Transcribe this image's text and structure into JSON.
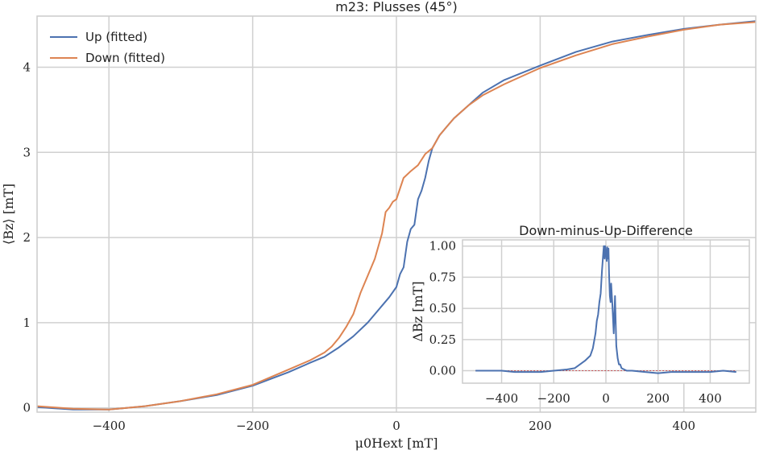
{
  "colors": {
    "up": "#4c72b0",
    "down": "#dd8452",
    "zero_line": "#c44e52"
  },
  "chart_data": [
    {
      "type": "line",
      "title": "m23: Plusses (45°)",
      "xlabel": "μ0Hext [mT]",
      "ylabel": "⟨Bz⟩ [mT]",
      "xlim": [
        -500,
        500
      ],
      "ylim": [
        -0.05,
        4.6
      ],
      "xticks": [
        -400,
        -200,
        0,
        200,
        400
      ],
      "xtick_labels": [
        "−400",
        "−200",
        "0",
        "200",
        "400"
      ],
      "yticks": [
        0,
        1,
        2,
        3,
        4
      ],
      "ytick_labels": [
        "0",
        "1",
        "2",
        "3",
        "4"
      ],
      "grid": true,
      "legend": "top-left",
      "series": [
        {
          "name": "Up (fitted)",
          "color": "#4c72b0",
          "x": [
            -500,
            -450,
            -400,
            -350,
            -300,
            -250,
            -200,
            -150,
            -120,
            -100,
            -80,
            -60,
            -40,
            -20,
            -10,
            0,
            5,
            10,
            15,
            20,
            25,
            30,
            35,
            40,
            45,
            50,
            60,
            70,
            80,
            100,
            120,
            150,
            200,
            250,
            300,
            350,
            400,
            450,
            500
          ],
          "y": [
            0.01,
            -0.02,
            -0.02,
            0.02,
            0.08,
            0.15,
            0.26,
            0.42,
            0.53,
            0.6,
            0.71,
            0.84,
            1.0,
            1.2,
            1.3,
            1.42,
            1.57,
            1.65,
            1.95,
            2.1,
            2.15,
            2.45,
            2.55,
            2.7,
            2.9,
            3.05,
            3.2,
            3.3,
            3.4,
            3.55,
            3.7,
            3.85,
            4.02,
            4.18,
            4.3,
            4.38,
            4.45,
            4.5,
            4.54
          ]
        },
        {
          "name": "Down (fitted)",
          "color": "#dd8452",
          "x": [
            -500,
            -450,
            -400,
            -350,
            -300,
            -250,
            -200,
            -150,
            -120,
            -100,
            -90,
            -80,
            -70,
            -60,
            -50,
            -40,
            -30,
            -20,
            -15,
            -10,
            -5,
            0,
            10,
            20,
            30,
            40,
            50,
            60,
            70,
            80,
            100,
            120,
            150,
            200,
            250,
            300,
            350,
            400,
            450,
            500
          ],
          "y": [
            0.02,
            -0.01,
            -0.02,
            0.02,
            0.08,
            0.16,
            0.27,
            0.45,
            0.56,
            0.65,
            0.72,
            0.82,
            0.95,
            1.1,
            1.35,
            1.55,
            1.75,
            2.05,
            2.3,
            2.35,
            2.42,
            2.45,
            2.7,
            2.78,
            2.85,
            2.98,
            3.05,
            3.2,
            3.3,
            3.4,
            3.55,
            3.67,
            3.8,
            3.99,
            4.14,
            4.27,
            4.36,
            4.44,
            4.5,
            4.53
          ]
        }
      ]
    },
    {
      "type": "line",
      "title": "Down-minus-Up-Difference",
      "xlabel": "",
      "ylabel": "ΔBz [mT]",
      "xlim": [
        -550,
        550
      ],
      "ylim": [
        -0.1,
        1.05
      ],
      "xticks": [
        -400,
        -200,
        0,
        200,
        400
      ],
      "xtick_labels": [
        "−400",
        "−200",
        "0",
        "200",
        "400"
      ],
      "yticks": [
        0.0,
        0.25,
        0.5,
        0.75,
        1.0
      ],
      "ytick_labels": [
        "0.00",
        "0.25",
        "0.50",
        "0.75",
        "1.00"
      ],
      "grid": true,
      "series": [
        {
          "name": "",
          "color": "#4c72b0",
          "x": [
            -500,
            -450,
            -400,
            -350,
            -300,
            -250,
            -200,
            -150,
            -120,
            -100,
            -80,
            -60,
            -50,
            -40,
            -35,
            -30,
            -25,
            -20,
            -15,
            -10,
            -8,
            -5,
            -3,
            0,
            3,
            5,
            8,
            10,
            12,
            15,
            18,
            20,
            25,
            30,
            35,
            40,
            45,
            50,
            55,
            60,
            70,
            80,
            100,
            150,
            200,
            250,
            300,
            350,
            400,
            450,
            500
          ],
          "y": [
            0.0,
            0.0,
            0.0,
            -0.01,
            -0.01,
            -0.01,
            0.0,
            0.01,
            0.02,
            0.05,
            0.08,
            0.12,
            0.18,
            0.3,
            0.4,
            0.45,
            0.55,
            0.62,
            0.8,
            0.95,
            1.0,
            0.9,
            1.0,
            0.95,
            0.88,
            0.99,
            0.9,
            0.98,
            0.78,
            0.6,
            0.55,
            0.7,
            0.52,
            0.3,
            0.6,
            0.2,
            0.1,
            0.05,
            0.05,
            0.02,
            0.01,
            0.0,
            0.0,
            -0.01,
            -0.02,
            -0.01,
            -0.01,
            -0.01,
            -0.01,
            0.0,
            -0.01
          ]
        }
      ]
    }
  ]
}
